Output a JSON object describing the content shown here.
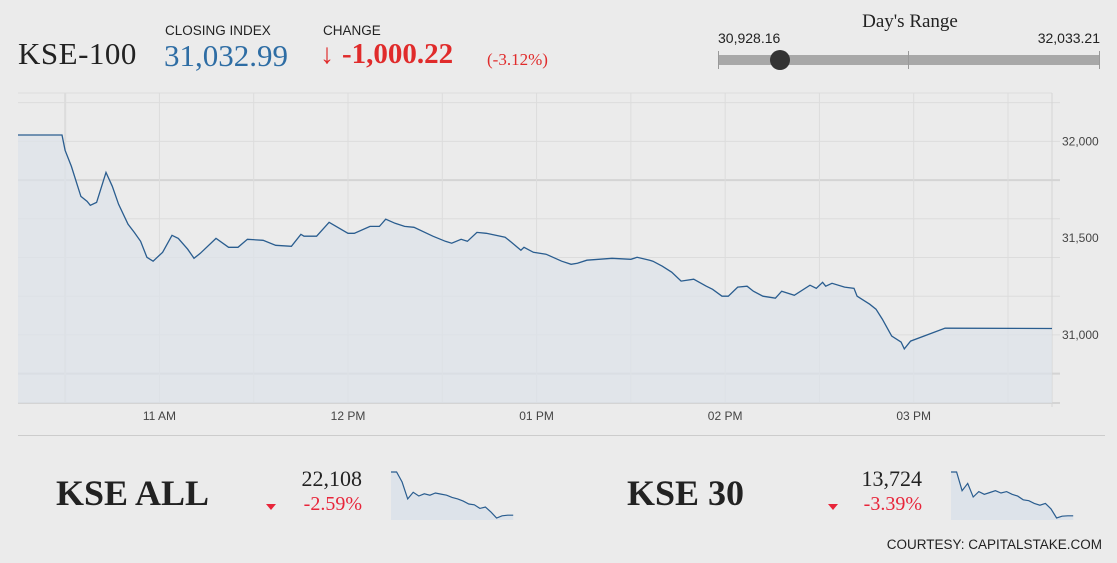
{
  "header": {
    "title": "KSE-100",
    "closing_label": "CLOSING INDEX",
    "closing_value": "31,032.99",
    "change_label": "CHANGE",
    "change_arrow_icon": "arrow-down-icon",
    "change_arrow": "↓",
    "change_value": "-1,000.22",
    "change_percent": "(-3.12%)"
  },
  "days_range": {
    "title": "Day's Range",
    "low": "30,928.16",
    "high": "32,033.21",
    "low_value": 30928.16,
    "high_value": 32033.21,
    "current_value": 31032.99
  },
  "colors": {
    "up_blue": "#2e6da4",
    "down_red": "#e02b2b",
    "line": "#2a5d8f",
    "area": "#dde3ea"
  },
  "chart_data": {
    "type": "area",
    "xlabel": "",
    "ylabel": "",
    "grid": true,
    "xlim": [
      "10:15",
      "15:44"
    ],
    "ylim": [
      30700,
      32250
    ],
    "x_ticks": [
      {
        "t": "11:00",
        "label": "11 AM"
      },
      {
        "t": "12:00",
        "label": "12 PM"
      },
      {
        "t": "13:00",
        "label": "01 PM"
      },
      {
        "t": "14:00",
        "label": "02 PM"
      },
      {
        "t": "15:00",
        "label": "03 PM"
      }
    ],
    "y_ticks": [
      {
        "v": 32000,
        "label": "32,000"
      },
      {
        "v": 31500,
        "label": "31,500"
      },
      {
        "v": 31000,
        "label": "31,000"
      }
    ],
    "series": [
      {
        "points": [
          [
            "10:15",
            32033
          ],
          [
            "10:29",
            32033
          ],
          [
            "10:30",
            31954
          ],
          [
            "10:32",
            31871
          ],
          [
            "10:34",
            31768
          ],
          [
            "10:35",
            31716
          ],
          [
            "10:37",
            31690
          ],
          [
            "10:38",
            31670
          ],
          [
            "10:40",
            31685
          ],
          [
            "10:43",
            31840
          ],
          [
            "10:45",
            31768
          ],
          [
            "10:47",
            31675
          ],
          [
            "10:50",
            31572
          ],
          [
            "10:52",
            31530
          ],
          [
            "10:54",
            31484
          ],
          [
            "10:56",
            31401
          ],
          [
            "10:58",
            31381
          ],
          [
            "11:01",
            31427
          ],
          [
            "11:04",
            31515
          ],
          [
            "11:06",
            31499
          ],
          [
            "11:09",
            31443
          ],
          [
            "11:11",
            31396
          ],
          [
            "11:13",
            31422
          ],
          [
            "11:18",
            31499
          ],
          [
            "11:22",
            31453
          ],
          [
            "11:25",
            31453
          ],
          [
            "11:28",
            31494
          ],
          [
            "11:33",
            31489
          ],
          [
            "11:37",
            31463
          ],
          [
            "11:42",
            31458
          ],
          [
            "11:45",
            31520
          ],
          [
            "11:46",
            31510
          ],
          [
            "11:50",
            31510
          ],
          [
            "11:54",
            31582
          ],
          [
            "12:00",
            31525
          ],
          [
            "12:02",
            31525
          ],
          [
            "12:07",
            31561
          ],
          [
            "12:10",
            31561
          ],
          [
            "12:12",
            31598
          ],
          [
            "12:15",
            31577
          ],
          [
            "12:18",
            31561
          ],
          [
            "12:21",
            31556
          ],
          [
            "12:27",
            31510
          ],
          [
            "12:31",
            31484
          ],
          [
            "12:33",
            31474
          ],
          [
            "12:36",
            31494
          ],
          [
            "12:38",
            31484
          ],
          [
            "12:41",
            31530
          ],
          [
            "12:44",
            31525
          ],
          [
            "12:50",
            31505
          ],
          [
            "12:52",
            31479
          ],
          [
            "12:55",
            31438
          ],
          [
            "12:56",
            31453
          ],
          [
            "12:59",
            31427
          ],
          [
            "13:03",
            31417
          ],
          [
            "13:08",
            31381
          ],
          [
            "13:11",
            31365
          ],
          [
            "13:13",
            31370
          ],
          [
            "13:16",
            31386
          ],
          [
            "13:24",
            31396
          ],
          [
            "13:30",
            31391
          ],
          [
            "13:32",
            31401
          ],
          [
            "13:36",
            31386
          ],
          [
            "13:37",
            31381
          ],
          [
            "13:40",
            31355
          ],
          [
            "13:43",
            31324
          ],
          [
            "13:46",
            31278
          ],
          [
            "13:50",
            31288
          ],
          [
            "13:54",
            31252
          ],
          [
            "13:56",
            31236
          ],
          [
            "13:59",
            31200
          ],
          [
            "14:01",
            31200
          ],
          [
            "14:04",
            31247
          ],
          [
            "14:07",
            31252
          ],
          [
            "14:09",
            31226
          ],
          [
            "14:12",
            31200
          ],
          [
            "14:16",
            31190
          ],
          [
            "14:18",
            31226
          ],
          [
            "14:22",
            31205
          ],
          [
            "14:27",
            31257
          ],
          [
            "14:29",
            31241
          ],
          [
            "14:31",
            31272
          ],
          [
            "14:32",
            31252
          ],
          [
            "14:34",
            31267
          ],
          [
            "14:38",
            31247
          ],
          [
            "14:41",
            31241
          ],
          [
            "14:42",
            31200
          ],
          [
            "14:46",
            31159
          ],
          [
            "14:48",
            31133
          ],
          [
            "14:50",
            31082
          ],
          [
            "14:53",
            30994
          ],
          [
            "14:56",
            30963
          ],
          [
            "14:57",
            30928
          ],
          [
            "14:59",
            30968
          ],
          [
            "15:10",
            31035
          ],
          [
            "15:44",
            31033
          ]
        ]
      }
    ]
  },
  "indices": [
    {
      "name": "KSE ALL",
      "value": "22,108",
      "change": "-2.59%",
      "trend_icon": "triangle-down-icon",
      "sparkline": [
        22696,
        22696,
        22560,
        22330,
        22420,
        22370,
        22400,
        22380,
        22410,
        22395,
        22380,
        22350,
        22330,
        22300,
        22260,
        22250,
        22200,
        22220,
        22150,
        22070,
        22100,
        22108,
        22108
      ]
    },
    {
      "name": "KSE 30",
      "value": "13,724",
      "change": "-3.39%",
      "trend_icon": "triangle-down-icon",
      "sparkline": [
        14205,
        14205,
        14000,
        14080,
        13930,
        13990,
        13960,
        13980,
        14000,
        13975,
        13990,
        13960,
        13940,
        13900,
        13890,
        13860,
        13840,
        13860,
        13800,
        13700,
        13720,
        13724,
        13724
      ]
    }
  ],
  "footer": {
    "courtesy": "COURTESY: CAPITALSTAKE.COM"
  }
}
